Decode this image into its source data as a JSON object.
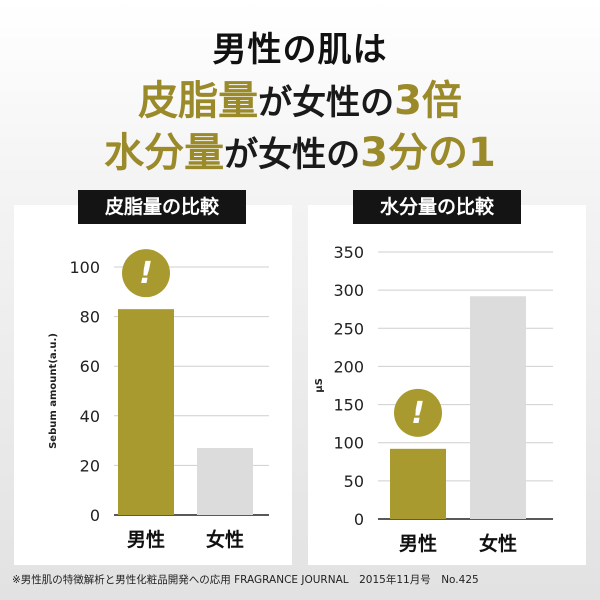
{
  "headline": {
    "line1": "男性の肌は",
    "line2_gold": "皮脂量",
    "line2_mid": "が女性の",
    "line2_gold2": "3倍",
    "line3_gold": "水分量",
    "line3_mid": "が女性の",
    "line3_gold2": "3分の1"
  },
  "colors": {
    "gold": "#a99a2f",
    "gray": "#dcdcdc",
    "gold_text": "#9a8a2a"
  },
  "chart_data": [
    {
      "type": "bar",
      "title": "皮脂量の比較",
      "ylabel": "Sebum amount(a.u.)",
      "categories": [
        "男性",
        "女性"
      ],
      "values": [
        83,
        27
      ],
      "yticks": [
        0,
        20,
        40,
        60,
        80,
        100
      ],
      "ylim": [
        0,
        100
      ],
      "highlight_icon": "exclamation-circle-icon",
      "grid": true
    },
    {
      "type": "bar",
      "title": "水分量の比較",
      "ylabel": "μS",
      "categories": [
        "男性",
        "女性"
      ],
      "values": [
        92,
        292
      ],
      "yticks": [
        0,
        50,
        100,
        150,
        200,
        250,
        300,
        350
      ],
      "ylim": [
        0,
        350
      ],
      "highlight_icon": "exclamation-circle-icon",
      "grid": true
    }
  ],
  "icon_text": "!",
  "footnote": "※男性肌の特徴解析と男性化粧品開発への応用 FRAGRANCE JOURNAL　2015年11月号　No.425"
}
